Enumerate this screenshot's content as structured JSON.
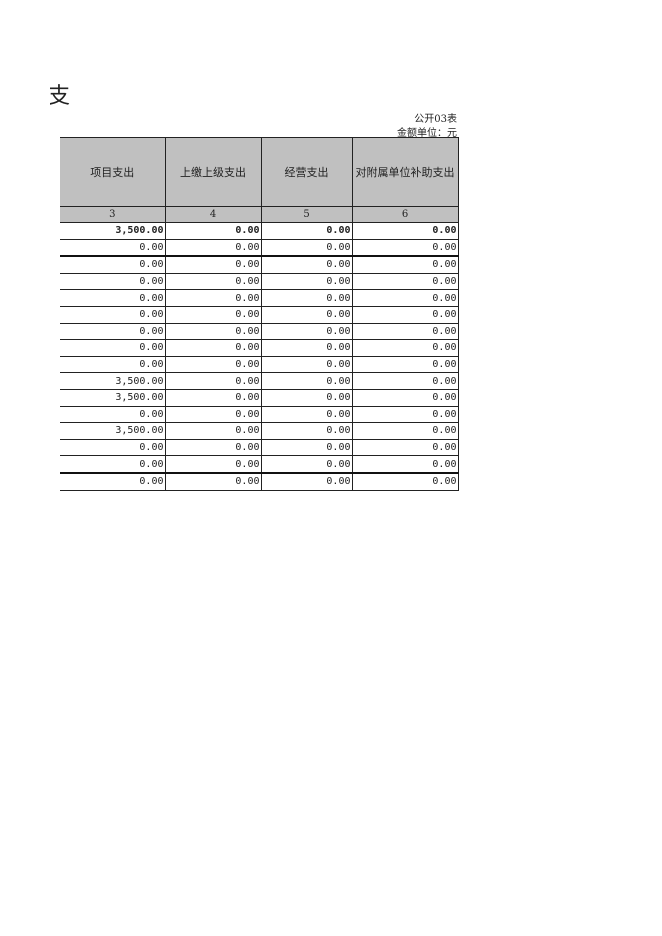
{
  "title_fragment": "支",
  "table_code": "公开03表",
  "unit": "金额单位：元",
  "headers": [
    "项目支出",
    "上缴上级支出",
    "经营支出",
    "对附属单位补助支出"
  ],
  "column_numbers": [
    "3",
    "4",
    "5",
    "6"
  ],
  "total": [
    "3,500.00",
    "0.00",
    "0.00",
    "0.00"
  ],
  "rows": [
    [
      "0.00",
      "0.00",
      "0.00",
      "0.00"
    ],
    [
      "0.00",
      "0.00",
      "0.00",
      "0.00"
    ],
    [
      "0.00",
      "0.00",
      "0.00",
      "0.00"
    ],
    [
      "0.00",
      "0.00",
      "0.00",
      "0.00"
    ],
    [
      "0.00",
      "0.00",
      "0.00",
      "0.00"
    ],
    [
      "0.00",
      "0.00",
      "0.00",
      "0.00"
    ],
    [
      "0.00",
      "0.00",
      "0.00",
      "0.00"
    ],
    [
      "0.00",
      "0.00",
      "0.00",
      "0.00"
    ],
    [
      "3,500.00",
      "0.00",
      "0.00",
      "0.00"
    ],
    [
      "3,500.00",
      "0.00",
      "0.00",
      "0.00"
    ],
    [
      "0.00",
      "0.00",
      "0.00",
      "0.00"
    ],
    [
      "3,500.00",
      "0.00",
      "0.00",
      "0.00"
    ],
    [
      "0.00",
      "0.00",
      "0.00",
      "0.00"
    ],
    [
      "0.00",
      "0.00",
      "0.00",
      "0.00"
    ],
    [
      "0.00",
      "0.00",
      "0.00",
      "0.00"
    ]
  ]
}
